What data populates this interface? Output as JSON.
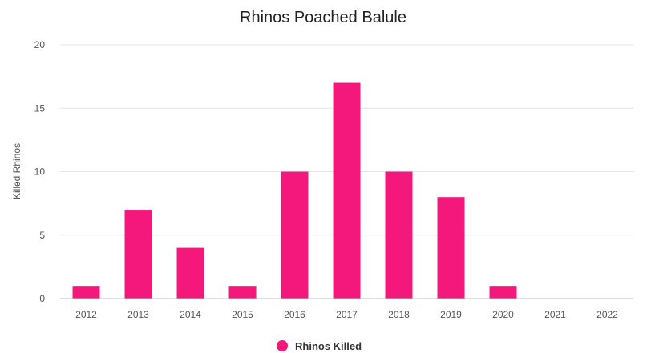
{
  "chart_data": {
    "type": "bar",
    "title": "Rhinos Poached Balule",
    "xlabel": "",
    "ylabel": "Killed Rhinos",
    "categories": [
      "2012",
      "2013",
      "2014",
      "2015",
      "2016",
      "2017",
      "2018",
      "2019",
      "2020",
      "2021",
      "2022"
    ],
    "series": [
      {
        "name": "Rhinos Killed",
        "values": [
          1,
          7,
          4,
          1,
          10,
          17,
          10,
          8,
          1,
          0,
          0
        ],
        "color": "#f4187c"
      }
    ],
    "ylim": [
      0,
      20
    ],
    "yticks": [
      0,
      5,
      10,
      15,
      20
    ],
    "grid": true,
    "legend_position": "bottom-center",
    "colors": {
      "bar": "#f4187c",
      "grid": "#e6e6e6",
      "axis": "#bdbdbd"
    }
  }
}
